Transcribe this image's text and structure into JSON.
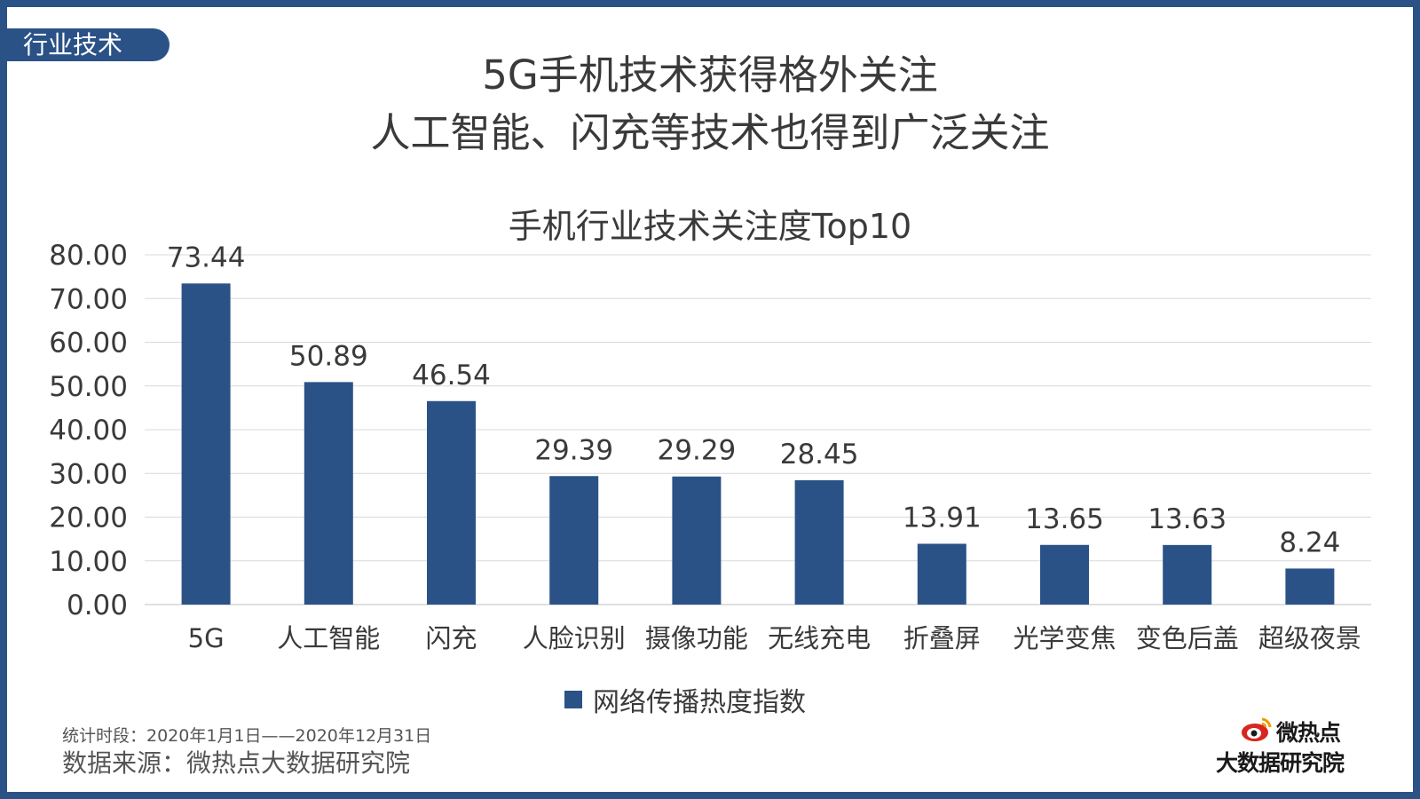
{
  "section_tag": "行业技术",
  "headline": {
    "line1": "5G手机技术获得格外关注",
    "line2": "人工智能、闪充等技术也得到广泛关注"
  },
  "colors": {
    "frame": "#2b5287",
    "bar": "#2b5287",
    "grid": "#d9d9d9",
    "text": "#3a3a3a"
  },
  "chart_data": {
    "type": "bar",
    "title": "手机行业技术关注度Top10",
    "categories": [
      "5G",
      "人工智能",
      "闪充",
      "人脸识别",
      "摄像功能",
      "无线充电",
      "折叠屏",
      "光学变焦",
      "变色后盖",
      "超级夜景"
    ],
    "series": [
      {
        "name": "网络传播热度指数",
        "values": [
          73.44,
          50.89,
          46.54,
          29.39,
          29.29,
          28.45,
          13.91,
          13.65,
          13.63,
          8.24
        ],
        "labels": [
          "73.44",
          "50.89",
          "46.54",
          "29.39",
          "29.29",
          "28.45",
          "13.91",
          "13.65",
          "13.63",
          "8.24"
        ]
      }
    ],
    "ylim": [
      0,
      80
    ],
    "yticks": [
      "0.00",
      "10.00",
      "20.00",
      "30.00",
      "40.00",
      "50.00",
      "60.00",
      "70.00",
      "80.00"
    ],
    "grid": true,
    "legend_position": "bottom"
  },
  "footnote": {
    "period": "统计时段：2020年1月1日——2020年12月31日",
    "source": "数据来源：微热点大数据研究院"
  },
  "logo": {
    "brand": "微热点",
    "institute": "大数据研究院",
    "icon": "weibo-eye-icon"
  }
}
